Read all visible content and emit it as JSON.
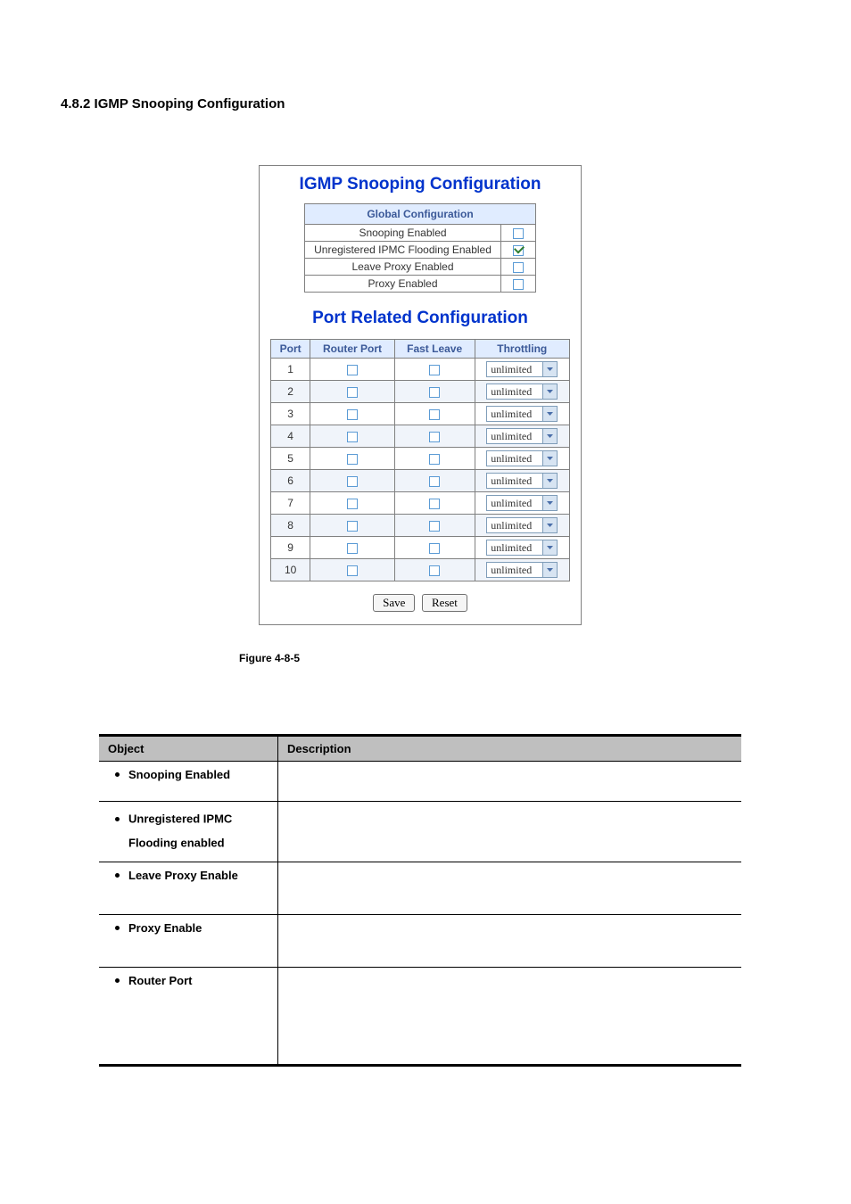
{
  "section_heading": "4.8.2 IGMP Snooping Configuration",
  "panel": {
    "title": "IGMP Snooping Configuration",
    "global_header": "Global Configuration",
    "rows": [
      {
        "label": "Snooping Enabled",
        "checked": false
      },
      {
        "label": "Unregistered IPMC Flooding Enabled",
        "checked": true
      },
      {
        "label": "Leave Proxy Enabled",
        "checked": false
      },
      {
        "label": "Proxy Enabled",
        "checked": false
      }
    ],
    "sub_title": "Port Related Configuration",
    "port_columns": [
      "Port",
      "Router Port",
      "Fast Leave",
      "Throttling"
    ],
    "ports": [
      {
        "n": "1",
        "throttling": "unlimited"
      },
      {
        "n": "2",
        "throttling": "unlimited"
      },
      {
        "n": "3",
        "throttling": "unlimited"
      },
      {
        "n": "4",
        "throttling": "unlimited"
      },
      {
        "n": "5",
        "throttling": "unlimited"
      },
      {
        "n": "6",
        "throttling": "unlimited"
      },
      {
        "n": "7",
        "throttling": "unlimited"
      },
      {
        "n": "8",
        "throttling": "unlimited"
      },
      {
        "n": "9",
        "throttling": "unlimited"
      },
      {
        "n": "10",
        "throttling": "unlimited"
      }
    ],
    "buttons": {
      "save": "Save",
      "reset": "Reset"
    }
  },
  "figure_caption": "Figure 4-8-5",
  "desc_table": {
    "headers": {
      "object": "Object",
      "description": "Description"
    },
    "items": [
      {
        "label": "Snooping Enabled",
        "two_line": false,
        "row_class": "shorter"
      },
      {
        "label": "Unregistered IPMC\nFlooding enabled",
        "two_line": true,
        "row_class": ""
      },
      {
        "label": "Leave Proxy Enable",
        "two_line": false,
        "row_class": "tall"
      },
      {
        "label": "Proxy Enable",
        "two_line": false,
        "row_class": "tall"
      },
      {
        "label": "Router Port",
        "two_line": false,
        "row_class": "taller"
      }
    ]
  },
  "colors": {
    "title_blue": "#0033cc",
    "header_bg": "#e0ecff",
    "header_fg": "#3b5998",
    "border": "#808080",
    "desc_header_bg": "#bfbfbf",
    "checkbox_border": "#5b9bd5",
    "select_border": "#7f9db9",
    "select_arrow_bg": "#d7e4f2",
    "check_mark": "#2e7d32"
  }
}
